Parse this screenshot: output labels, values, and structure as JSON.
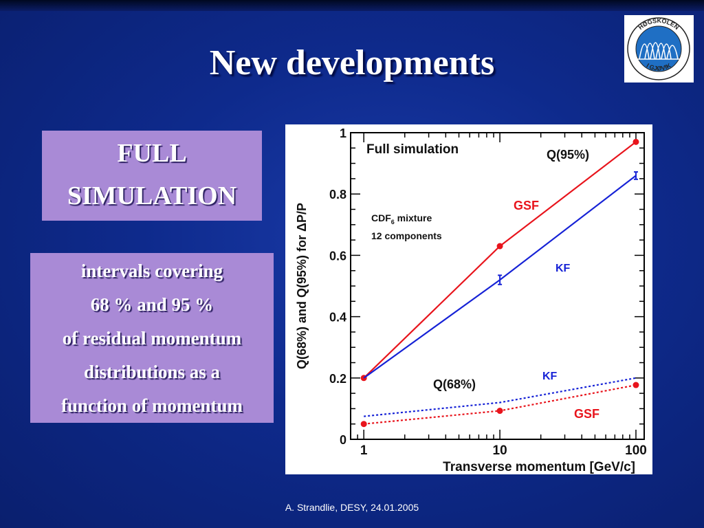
{
  "slide": {
    "title": "New developments",
    "box_full": [
      "FULL",
      "SIMULATION"
    ],
    "box_intervals": [
      "intervals covering",
      "68 % and 95 %",
      "of residual momentum",
      "distributions as a",
      "function of momentum"
    ],
    "footer": "A. Strandlie, DESY, 24.01.2005",
    "logo": {
      "text_top": "HØGSKOLEN",
      "text_bottom": "I GJØVIK",
      "icon": "college-logo-icon"
    }
  },
  "colors": {
    "gsf": "#e8141c",
    "kf": "#1622d6",
    "box": "#a98ad6"
  },
  "chart_data": {
    "type": "line",
    "title": "Full simulation",
    "xlabel": "Transverse momentum [GeV/c]",
    "ylabel": "Q(68%) and Q(95%) for ΔP/P",
    "xscale": "log",
    "xlim": [
      0.8,
      115
    ],
    "ylim": [
      0,
      1
    ],
    "xticks": [
      "1",
      "10",
      "100"
    ],
    "yticks": [
      "0",
      "0.2",
      "0.4",
      "0.6",
      "0.8",
      "1"
    ],
    "annotations": {
      "q95": "Q(95%)",
      "q68": "Q(68%)",
      "mixture": "CDF",
      "mixture_sub": "6",
      "mixture_rest": " mixture",
      "components": "12 components",
      "gsf_upper": "GSF",
      "kf_upper": "KF",
      "kf_lower": "KF",
      "gsf_lower": "GSF"
    },
    "series": [
      {
        "name": "GSF",
        "quantile": "Q(95%)",
        "style": "solid",
        "color": "#e8141c",
        "x": [
          1,
          10,
          100
        ],
        "y": [
          0.2,
          0.63,
          0.97
        ]
      },
      {
        "name": "KF",
        "quantile": "Q(95%)",
        "style": "solid",
        "color": "#1622d6",
        "x": [
          1,
          10,
          100
        ],
        "y": [
          0.2,
          0.52,
          0.86
        ],
        "errors": [
          0,
          0.015,
          0.012
        ]
      },
      {
        "name": "KF",
        "quantile": "Q(68%)",
        "style": "dotted",
        "color": "#1622d6",
        "x": [
          1,
          10,
          100
        ],
        "y": [
          0.075,
          0.12,
          0.2
        ]
      },
      {
        "name": "GSF",
        "quantile": "Q(68%)",
        "style": "dotted",
        "color": "#e8141c",
        "x": [
          1,
          10,
          100
        ],
        "y": [
          0.05,
          0.093,
          0.177
        ]
      }
    ]
  }
}
